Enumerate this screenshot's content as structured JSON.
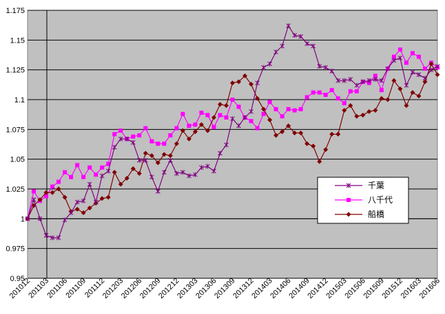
{
  "chart_data": {
    "type": "line",
    "title": "",
    "xlabel": "",
    "ylabel": "",
    "ylim": [
      0.95,
      1.175
    ],
    "yticks": [
      "0.95",
      "0.975",
      "1",
      "1.025",
      "1.05",
      "1.075",
      "1.1",
      "1.125",
      "1.15",
      "1.175"
    ],
    "ytick_values": [
      0.95,
      0.975,
      1.0,
      1.025,
      1.05,
      1.075,
      1.1,
      1.125,
      1.15,
      1.175
    ],
    "x_start": "2010-12",
    "xtick_labels": [
      "201012",
      "201103",
      "201106",
      "201109",
      "201112",
      "201203",
      "201206",
      "201209",
      "201212",
      "201303",
      "201306",
      "201309",
      "201312",
      "201403",
      "201406",
      "201409",
      "201412",
      "201503",
      "201506",
      "201509",
      "201512",
      "201603",
      "201606"
    ],
    "grid": true,
    "plot_background": "#c0c0c0",
    "legend_position": "right-center",
    "series": [
      {
        "name": "千葉",
        "color": "#800080",
        "marker": "star",
        "values": [
          1.0,
          1.016,
          1.0,
          0.986,
          0.984,
          0.984,
          0.999,
          1.005,
          1.014,
          1.015,
          1.029,
          1.014,
          1.036,
          1.04,
          1.06,
          1.067,
          1.067,
          1.064,
          1.049,
          1.049,
          1.035,
          1.023,
          1.039,
          1.049,
          1.038,
          1.039,
          1.036,
          1.037,
          1.043,
          1.044,
          1.04,
          1.055,
          1.062,
          1.084,
          1.078,
          1.085,
          1.09,
          1.114,
          1.127,
          1.13,
          1.14,
          1.145,
          1.162,
          1.154,
          1.153,
          1.147,
          1.145,
          1.128,
          1.127,
          1.124,
          1.116,
          1.116,
          1.117,
          1.112,
          1.115,
          1.116,
          1.117,
          1.116,
          1.126,
          1.133,
          1.135,
          1.112,
          1.123,
          1.121,
          1.118,
          1.125,
          1.128
        ]
      },
      {
        "name": "八千代",
        "color": "#ff00ff",
        "marker": "square",
        "values": [
          1.0,
          1.023,
          1.015,
          1.019,
          1.027,
          1.031,
          1.039,
          1.035,
          1.045,
          1.035,
          1.043,
          1.037,
          1.043,
          1.046,
          1.071,
          1.074,
          1.067,
          1.069,
          1.07,
          1.076,
          1.065,
          1.063,
          1.063,
          1.07,
          1.076,
          1.088,
          1.078,
          1.079,
          1.089,
          1.087,
          1.077,
          1.087,
          1.085,
          1.1,
          1.094,
          1.085,
          1.082,
          1.076,
          1.088,
          1.098,
          1.092,
          1.086,
          1.092,
          1.091,
          1.092,
          1.102,
          1.106,
          1.106,
          1.104,
          1.108,
          1.101,
          1.097,
          1.107,
          1.107,
          1.115,
          1.114,
          1.12,
          1.108,
          1.126,
          1.136,
          1.142,
          1.131,
          1.139,
          1.136,
          1.126,
          1.131,
          1.127
        ]
      },
      {
        "name": "船橋",
        "color": "#800000",
        "marker": "diamond",
        "values": [
          1.0,
          1.011,
          1.016,
          1.022,
          1.022,
          1.025,
          1.018,
          1.006,
          1.008,
          1.005,
          1.009,
          1.013,
          1.017,
          1.018,
          1.039,
          1.029,
          1.034,
          1.042,
          1.038,
          1.055,
          1.053,
          1.047,
          1.054,
          1.053,
          1.063,
          1.074,
          1.067,
          1.073,
          1.079,
          1.074,
          1.085,
          1.096,
          1.095,
          1.114,
          1.115,
          1.12,
          1.113,
          1.101,
          1.092,
          1.083,
          1.07,
          1.073,
          1.078,
          1.072,
          1.072,
          1.063,
          1.061,
          1.048,
          1.058,
          1.071,
          1.071,
          1.091,
          1.095,
          1.086,
          1.087,
          1.09,
          1.091,
          1.101,
          1.1,
          1.116,
          1.109,
          1.095,
          1.106,
          1.103,
          1.115,
          1.13,
          1.121
        ]
      }
    ]
  }
}
